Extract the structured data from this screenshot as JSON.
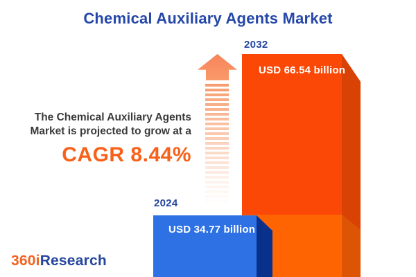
{
  "title": "Chemical Auxiliary Agents Market",
  "description": {
    "line1": "The Chemical Auxiliary Agents",
    "line2": "Market is projected to grow at a",
    "cagr": "CAGR 8.44%"
  },
  "bars": [
    {
      "year": "2024",
      "label": "USD 34.77 billion",
      "value": 34.77
    },
    {
      "year": "2032",
      "label": "USD 66.54 billion",
      "value": 66.54
    }
  ],
  "chart_data": {
    "type": "bar",
    "categories": [
      "2024",
      "2032"
    ],
    "values": [
      34.77,
      66.54
    ],
    "unit": "USD billion",
    "value_labels": [
      "USD 34.77 billion",
      "USD 66.54 billion"
    ],
    "cagr_percent": 8.44,
    "title": "Chemical Auxiliary Agents Market",
    "xlabel": "",
    "ylabel": "",
    "legend": "none",
    "grid": false,
    "annotations": [
      "The Chemical Auxiliary Agents Market is projected to grow at a CAGR 8.44%"
    ]
  },
  "logo": {
    "part1": "360i",
    "part2": "Research"
  },
  "icons": {
    "growth_arrow": "up-arrow-dashed"
  },
  "colors": {
    "title_blue": "#2547A8",
    "accent_orange": "#F8611A",
    "bar_2024_front": "#2E71E5",
    "bar_2024_side": "#09318C",
    "bar_2032_front_upper": "#FB4806",
    "bar_2032_front_lower": "#FE6502",
    "bar_2032_side_upper": "#D84305",
    "bar_2032_side_lower": "#DD5404",
    "arrow_orange": "#F79C6E",
    "year_label_blue": "#2445A0",
    "value_label_white": "#FFFFFF",
    "text_dark": "#3A3A3A",
    "logo_orange": "#F16322",
    "logo_blue": "#27479E"
  }
}
